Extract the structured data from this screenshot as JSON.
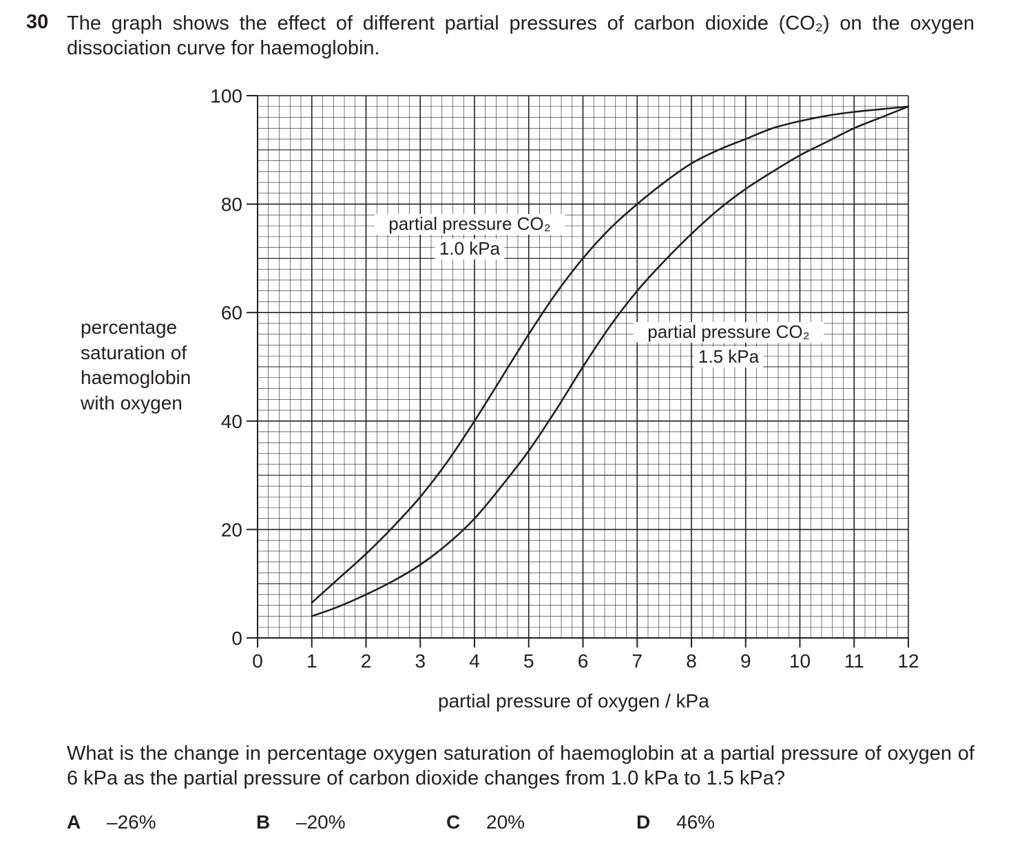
{
  "question": {
    "number": "30",
    "text": "The graph shows the effect of different partial pressures of carbon dioxide (CO₂) on the oxygen dissociation curve for haemoglobin.",
    "prompt": "What is the change in percentage oxygen saturation of haemoglobin at a partial pressure of oxygen of 6 kPa as the partial pressure of carbon dioxide changes from 1.0 kPa to 1.5 kPa?",
    "options": [
      {
        "letter": "A",
        "value": "–26%"
      },
      {
        "letter": "B",
        "value": "–20%"
      },
      {
        "letter": "C",
        "value": "20%"
      },
      {
        "letter": "D",
        "value": "46%"
      }
    ]
  },
  "chart_data": {
    "type": "line",
    "title": "",
    "xlabel": "partial pressure of oxygen / kPa",
    "ylabel_lines": [
      "percentage",
      "saturation of",
      "haemoglobin",
      "with oxygen"
    ],
    "xlim": [
      0,
      12
    ],
    "ylim": [
      0,
      100
    ],
    "xticks": [
      0,
      1,
      2,
      3,
      4,
      5,
      6,
      7,
      8,
      9,
      10,
      11,
      12
    ],
    "yticks": [
      0,
      20,
      40,
      60,
      80,
      100
    ],
    "grid": true,
    "line_color": "#231f20",
    "series": [
      {
        "label_lines": [
          "partial pressure CO₂",
          "1.0 kPa"
        ],
        "points": [
          [
            1,
            6.5
          ],
          [
            1.5,
            11
          ],
          [
            2,
            15.5
          ],
          [
            2.5,
            20.5
          ],
          [
            3,
            26
          ],
          [
            3.5,
            32.5
          ],
          [
            4,
            40
          ],
          [
            4.5,
            48
          ],
          [
            5,
            56
          ],
          [
            5.5,
            63.5
          ],
          [
            6,
            70
          ],
          [
            6.5,
            75.5
          ],
          [
            7,
            80
          ],
          [
            7.5,
            84
          ],
          [
            8,
            87.5
          ],
          [
            8.5,
            90
          ],
          [
            9,
            92
          ],
          [
            9.5,
            94
          ],
          [
            10,
            95.3
          ],
          [
            10.5,
            96.3
          ],
          [
            11,
            97
          ],
          [
            11.5,
            97.5
          ],
          [
            12,
            98
          ]
        ]
      },
      {
        "label_lines": [
          "partial pressure CO₂",
          "1.5 kPa"
        ],
        "points": [
          [
            1,
            4
          ],
          [
            1.5,
            5.8
          ],
          [
            2,
            8
          ],
          [
            2.5,
            10.5
          ],
          [
            3,
            13.5
          ],
          [
            3.5,
            17.3
          ],
          [
            4,
            22
          ],
          [
            4.5,
            28
          ],
          [
            5,
            34.5
          ],
          [
            5.5,
            42
          ],
          [
            6,
            50
          ],
          [
            6.5,
            57.5
          ],
          [
            7,
            64
          ],
          [
            7.5,
            69.5
          ],
          [
            8,
            74.5
          ],
          [
            8.5,
            79
          ],
          [
            9,
            82.8
          ],
          [
            9.5,
            86
          ],
          [
            10,
            89
          ],
          [
            10.5,
            91.5
          ],
          [
            11,
            94
          ],
          [
            11.5,
            96
          ],
          [
            12,
            98
          ]
        ]
      }
    ]
  }
}
